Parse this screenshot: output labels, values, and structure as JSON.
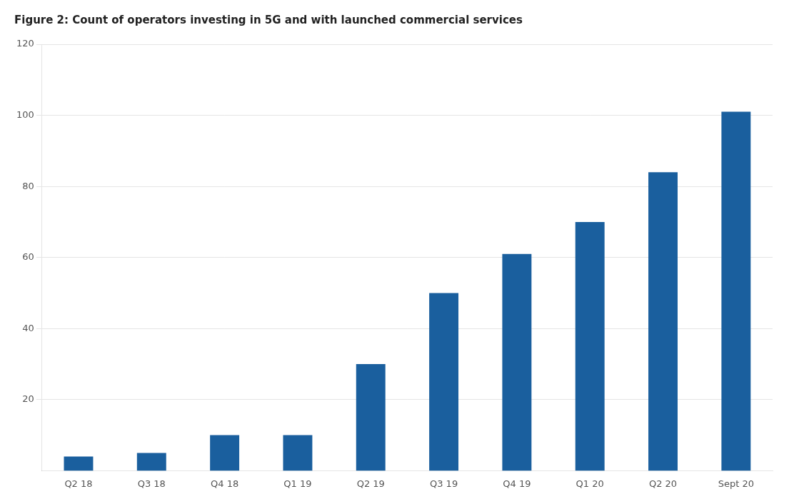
{
  "chart_data": {
    "type": "bar",
    "title": "Figure 2: Count of operators investing in 5G and with launched commercial services",
    "categories": [
      "Q2 18",
      "Q3 18",
      "Q4 18",
      "Q1 19",
      "Q2 19",
      "Q3 19",
      "Q4 19",
      "Q1 20",
      "Q2 20",
      "Sept 20"
    ],
    "values": [
      4,
      5,
      10,
      10,
      30,
      50,
      61,
      70,
      84,
      101
    ],
    "color": "#1a5f9e",
    "ylim": [
      0,
      120
    ],
    "yticks": [
      20,
      40,
      60,
      80,
      100,
      120
    ],
    "grid": true
  }
}
